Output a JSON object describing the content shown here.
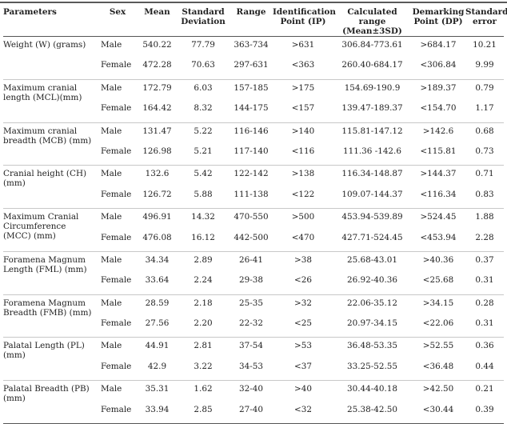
{
  "headers": {
    "parameters": "Parameters",
    "sex": "Sex",
    "mean": "Mean",
    "sd": "Standard Deviation",
    "range": "Range",
    "ip": "Identification Point (IP)",
    "calc": "Calculated range (Mean±3SD)",
    "dp": "Demarking Point (DP)",
    "se": "Standard error"
  },
  "rows": [
    {
      "param": "Weight (W) (grams)",
      "male": [
        "Male",
        "540.22",
        "77.79",
        "363-734",
        ">631",
        "306.84-773.61",
        ">684.17",
        "10.21"
      ],
      "female": [
        "Female",
        "472.28",
        "70.63",
        "297-631",
        "<363",
        "260.40-684.17",
        "<306.84",
        "9.99"
      ]
    },
    {
      "param": "Maximum cranial length (MCL)(mm)",
      "male": [
        "Male",
        "172.79",
        "6.03",
        "157-185",
        ">175",
        "154.69-190.9",
        ">189.37",
        "0.79"
      ],
      "female": [
        "Female",
        "164.42",
        "8.32",
        "144-175",
        "<157",
        "139.47-189.37",
        "<154.70",
        "1.17"
      ]
    },
    {
      "param": "Maximum cranial breadth (MCB) (mm)",
      "male": [
        "Male",
        "131.47",
        "5.22",
        "116-146",
        ">140",
        "115.81-147.12",
        ">142.6",
        "0.68"
      ],
      "female": [
        "Female",
        "126.98",
        "5.21",
        "117-140",
        "<116",
        "111.36 -142.6",
        "<115.81",
        "0.73"
      ]
    },
    {
      "param": "Cranial height (CH) (mm)",
      "male": [
        "Male",
        "132.6",
        "5.42",
        "122-142",
        ">138",
        "116.34-148.87",
        ">144.37",
        "0.71"
      ],
      "female": [
        "Female",
        "126.72",
        "5.88",
        "111-138",
        "<122",
        "109.07-144.37",
        "<116.34",
        "0.83"
      ]
    },
    {
      "param": "Maximum Cranial Circumference (MCC) (mm)",
      "male": [
        "Male",
        "496.91",
        "14.32",
        "470-550",
        ">500",
        "453.94-539.89",
        ">524.45",
        "1.88"
      ],
      "female": [
        "Female",
        "476.08",
        "16.12",
        "442-500",
        "<470",
        "427.71-524.45",
        "<453.94",
        "2.28"
      ]
    },
    {
      "param": "Foramena Magnum Length (FML) (mm)",
      "male": [
        "Male",
        "34.34",
        "2.89",
        "26-41",
        ">38",
        "25.68-43.01",
        ">40.36",
        "0.37"
      ],
      "female": [
        "Female",
        "33.64",
        "2.24",
        "29-38",
        "<26",
        "26.92-40.36",
        "<25.68",
        "0.31"
      ]
    },
    {
      "param": "Foramena Magnum Breadth (FMB) (mm)",
      "male": [
        "Male",
        "28.59",
        "2.18",
        "25-35",
        ">32",
        "22.06-35.12",
        ">34.15",
        "0.28"
      ],
      "female": [
        "Female",
        "27.56",
        "2.20",
        "22-32",
        "<25",
        "20.97-34.15",
        "<22.06",
        "0.31"
      ]
    },
    {
      "param": "Palatal Length (PL) (mm)",
      "male": [
        "Male",
        "44.91",
        "2.81",
        "37-54",
        ">53",
        "36.48-53.35",
        ">52.55",
        "0.36"
      ],
      "female": [
        "Female",
        "42.9",
        "3.22",
        "34-53",
        "<37",
        "33.25-52.55",
        "<36.48",
        "0.44"
      ]
    },
    {
      "param": "Palatal Breadth (PB) (mm)",
      "male": [
        "Male",
        "35.31",
        "1.62",
        "32-40",
        ">40",
        "30.44-40.18",
        ">42.50",
        "0.21"
      ],
      "female": [
        "Female",
        "33.94",
        "2.85",
        "27-40",
        "<32",
        "25.38-42.50",
        "<30.44",
        "0.39"
      ]
    }
  ]
}
